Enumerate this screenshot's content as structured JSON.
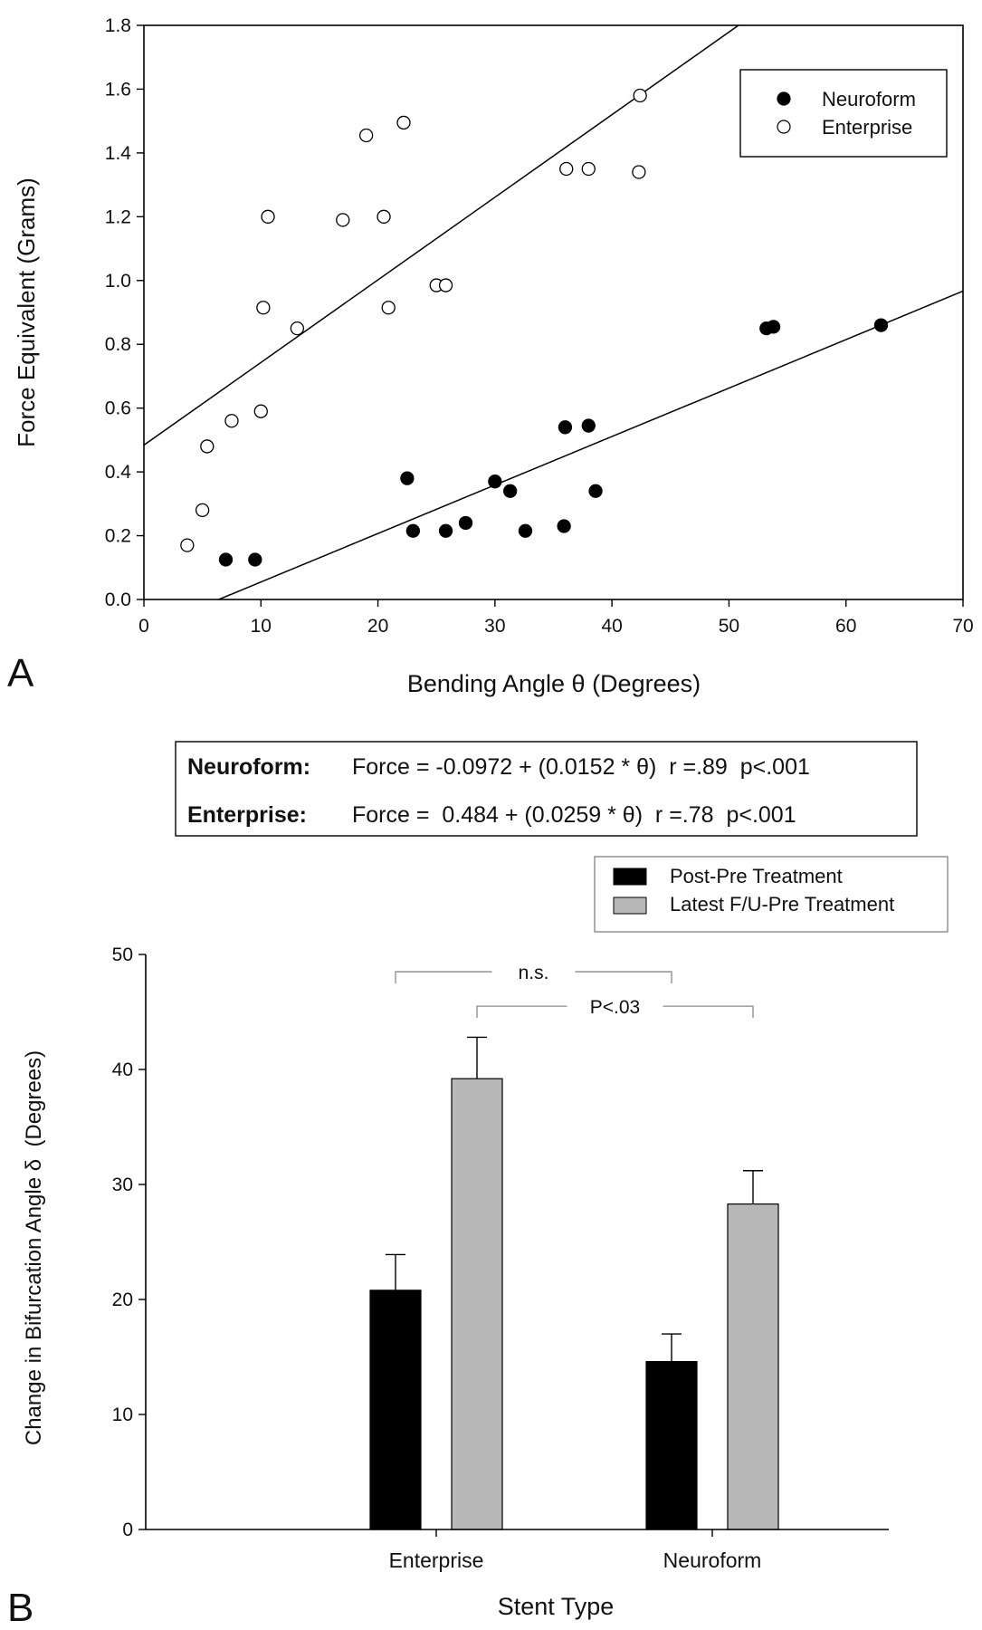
{
  "chart_data": [
    {
      "panel_label": "A",
      "type": "scatter",
      "xlabel": "Bending Angle θ (Degrees)",
      "ylabel": "Force Equivalent (Grams)",
      "xlim": [
        0,
        70
      ],
      "ylim": [
        0,
        1.8
      ],
      "x_ticks": [
        "0",
        "10",
        "20",
        "30",
        "40",
        "50",
        "60",
        "70"
      ],
      "y_ticks": [
        "0.0",
        "0.2",
        "0.4",
        "0.6",
        "0.8",
        "1.0",
        "1.2",
        "1.4",
        "1.6",
        "1.8"
      ],
      "grid": false,
      "legend_position": "top-right",
      "series": [
        {
          "name": "Neuroform",
          "marker": "filled-circle",
          "color": "#000000",
          "fit": {
            "intercept": -0.0972,
            "slope": 0.0152
          },
          "points": [
            [
              7.0,
              0.125
            ],
            [
              9.5,
              0.125
            ],
            [
              22.5,
              0.38
            ],
            [
              23.0,
              0.215
            ],
            [
              25.8,
              0.215
            ],
            [
              27.5,
              0.24
            ],
            [
              30.0,
              0.37
            ],
            [
              31.3,
              0.34
            ],
            [
              32.6,
              0.215
            ],
            [
              35.9,
              0.23
            ],
            [
              36.0,
              0.54
            ],
            [
              38.0,
              0.545
            ],
            [
              38.6,
              0.34
            ],
            [
              53.2,
              0.85
            ],
            [
              53.8,
              0.855
            ],
            [
              63.0,
              0.86
            ]
          ]
        },
        {
          "name": "Enterprise",
          "marker": "open-circle",
          "color": "#000000",
          "fit": {
            "intercept": 0.484,
            "slope": 0.0259
          },
          "points": [
            [
              3.7,
              0.17
            ],
            [
              5.0,
              0.28
            ],
            [
              5.4,
              0.48
            ],
            [
              7.5,
              0.56
            ],
            [
              10.0,
              0.59
            ],
            [
              10.2,
              0.915
            ],
            [
              10.6,
              1.2
            ],
            [
              13.1,
              0.85
            ],
            [
              17.0,
              1.19
            ],
            [
              19.0,
              1.455
            ],
            [
              20.5,
              1.2
            ],
            [
              20.9,
              0.915
            ],
            [
              22.2,
              1.495
            ],
            [
              25.0,
              0.985
            ],
            [
              25.8,
              0.985
            ],
            [
              36.1,
              1.35
            ],
            [
              38.0,
              1.35
            ],
            [
              42.3,
              1.34
            ],
            [
              42.4,
              1.58
            ]
          ]
        }
      ]
    },
    {
      "panel_label": "B",
      "type": "bar",
      "xlabel": "Stent Type",
      "ylabel": "Change in Bifurcation Angle δ  (Degrees)",
      "ylim": [
        0,
        50
      ],
      "y_ticks": [
        "0",
        "10",
        "20",
        "30",
        "40",
        "50"
      ],
      "categories": [
        "Enterprise",
        "Neuroform"
      ],
      "grid": false,
      "legend_position": "top-right",
      "series": [
        {
          "name": "Post-Pre Treatment",
          "color": "#000000",
          "values": [
            20.8,
            14.6
          ],
          "errors": [
            3.1,
            2.4
          ]
        },
        {
          "name": "Latest F/U-Pre Treatment",
          "color": "#b8b8b8",
          "values": [
            39.2,
            28.3
          ],
          "errors": [
            3.6,
            2.9
          ]
        }
      ],
      "annotations": [
        {
          "label": "n.s.",
          "from": [
            0,
            0
          ],
          "to": [
            1,
            0
          ],
          "y": 48.5
        },
        {
          "label": "P<.03",
          "from": [
            0,
            1
          ],
          "to": [
            1,
            1
          ],
          "y": 45.5
        }
      ]
    }
  ],
  "equations": {
    "neuroform_label": "Neuroform:",
    "neuroform_formula": "Force = -0.0972 + (0.0152 * θ)  r =.89  p<.001",
    "enterprise_label": "Enterprise:",
    "enterprise_formula": "Force =  0.484 + (0.0259 * θ)  r =.78  p<.001"
  }
}
